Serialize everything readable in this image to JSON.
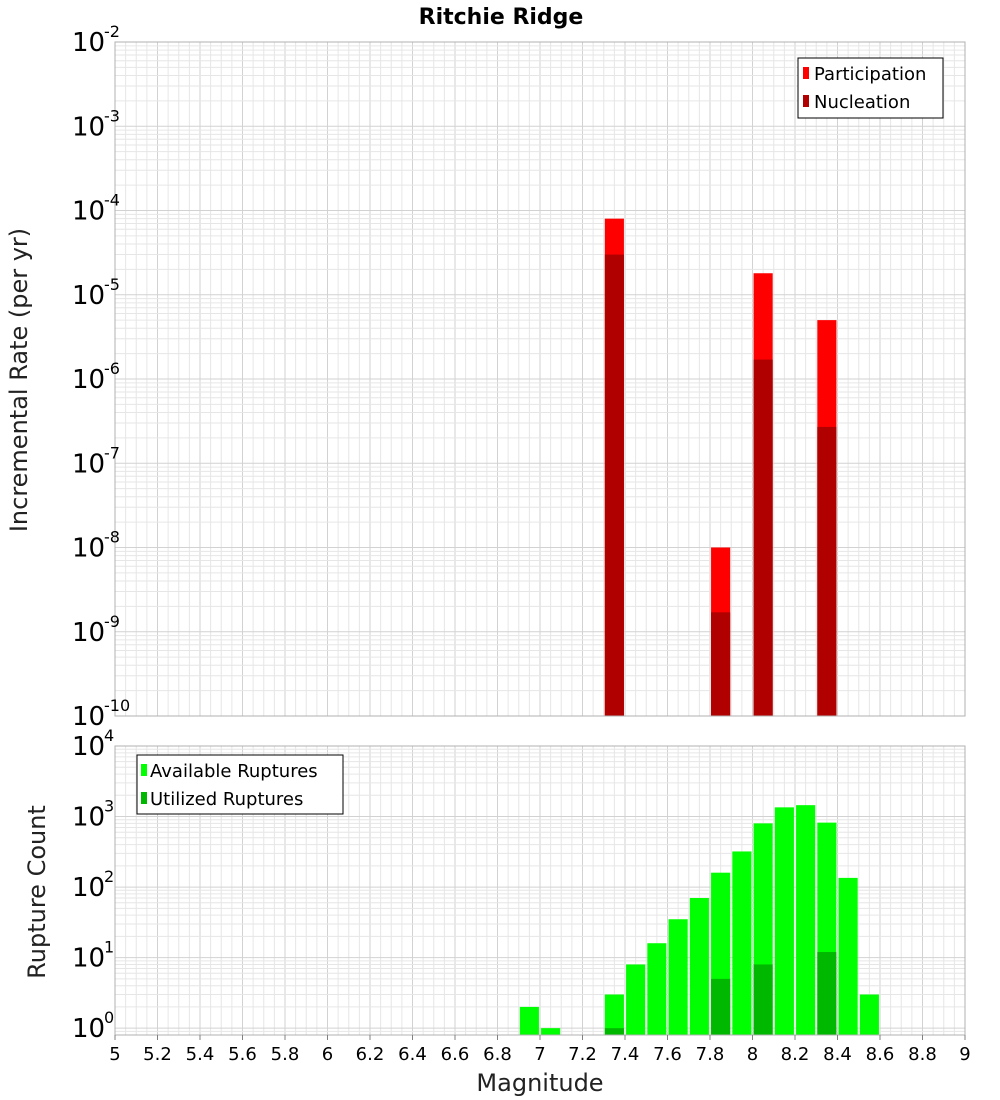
{
  "chart_data": [
    {
      "type": "bar",
      "title": "Ritchie Ridge",
      "ylabel": "Incremental Rate (per yr)",
      "xlabel": "",
      "yscale": "log",
      "ylim": [
        1e-10,
        0.01
      ],
      "xlim": [
        5,
        9
      ],
      "legend_position": "top-right",
      "bar_width": 0.09,
      "series": [
        {
          "name": "Participation",
          "color": "#ff0000",
          "x": [
            7.35,
            7.85,
            8.05,
            8.35
          ],
          "values": [
            8e-05,
            1e-08,
            1.8e-05,
            5e-06
          ]
        },
        {
          "name": "Nucleation",
          "color": "#b00000",
          "x": [
            7.35,
            7.85,
            8.05,
            8.35
          ],
          "values": [
            3e-05,
            1.7e-09,
            1.7e-06,
            2.7e-07
          ]
        }
      ]
    },
    {
      "type": "bar",
      "title": "",
      "ylabel": "Rupture Count",
      "xlabel": "Magnitude",
      "yscale": "log",
      "ylim": [
        0.8,
        10000
      ],
      "xlim": [
        5,
        9
      ],
      "legend_position": "top-left",
      "bar_width": 0.09,
      "x_ticks": [
        "5",
        "5.2",
        "5.4",
        "5.6",
        "5.8",
        "6",
        "6.2",
        "6.4",
        "6.6",
        "6.8",
        "7",
        "7.2",
        "7.4",
        "7.6",
        "7.8",
        "8",
        "8.2",
        "8.4",
        "8.6",
        "8.8",
        "9"
      ],
      "series": [
        {
          "name": "Available Ruptures",
          "color": "#00ff00",
          "x": [
            6.95,
            7.05,
            7.35,
            7.45,
            7.55,
            7.65,
            7.75,
            7.85,
            7.95,
            8.05,
            8.15,
            8.25,
            8.35,
            8.45,
            8.55
          ],
          "values": [
            2,
            1,
            3,
            8,
            16,
            35,
            70,
            160,
            320,
            800,
            1350,
            1450,
            820,
            135,
            3
          ]
        },
        {
          "name": "Utilized Ruptures",
          "color": "#00b800",
          "x": [
            7.35,
            7.85,
            8.05,
            8.35
          ],
          "values": [
            1,
            5,
            8,
            12
          ]
        }
      ]
    }
  ],
  "y_tick_base": "10",
  "top_y_exponents": [
    "-10",
    "-9",
    "-8",
    "-7",
    "-6",
    "-5",
    "-4",
    "-3",
    "-2"
  ],
  "bottom_y_exponents": [
    "0",
    "1",
    "2",
    "3",
    "4"
  ]
}
